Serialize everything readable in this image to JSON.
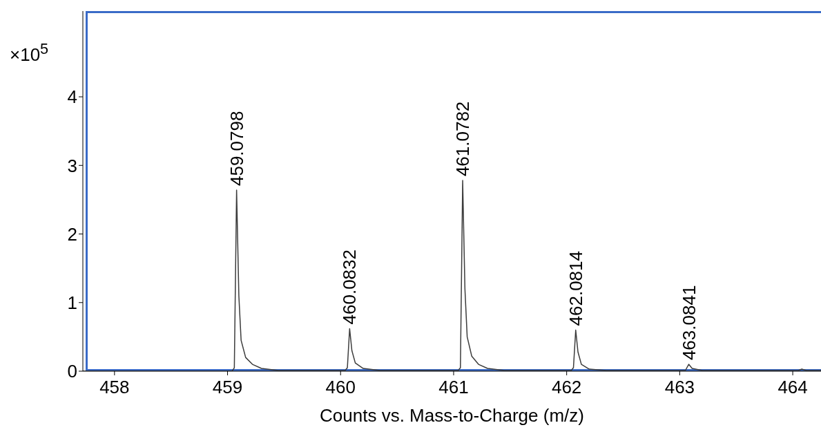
{
  "chart_data": {
    "type": "line",
    "xlabel": "Counts vs. Mass-to-Charge (m/z)",
    "ylabel": "×10$^{5}$",
    "x": [
      457.72,
      459.04,
      459.06,
      459.08,
      459.1,
      459.12,
      459.16,
      459.22,
      459.3,
      459.45,
      460.04,
      460.06,
      460.08,
      460.1,
      460.13,
      460.2,
      460.35,
      461.04,
      461.06,
      461.08,
      461.1,
      461.12,
      461.16,
      461.22,
      461.3,
      461.45,
      462.04,
      462.06,
      462.08,
      462.1,
      462.13,
      462.2,
      462.35,
      463.05,
      463.08,
      463.11,
      463.2,
      464.05,
      464.08,
      464.12,
      464.25
    ],
    "series": [
      {
        "color": "#3c3c3c",
        "values": [
          0,
          0,
          0.05,
          2.64,
          1.1,
          0.45,
          0.2,
          0.1,
          0.04,
          0.01,
          0.01,
          0.05,
          0.62,
          0.3,
          0.12,
          0.04,
          0.01,
          0.01,
          0.05,
          2.78,
          1.2,
          0.5,
          0.22,
          0.1,
          0.04,
          0.01,
          0.01,
          0.05,
          0.6,
          0.28,
          0.1,
          0.03,
          0.01,
          0.01,
          0.1,
          0.04,
          0.01,
          0.01,
          0.03,
          0.01,
          0.01
        ]
      }
    ],
    "xlim": [
      457.72,
      464.25
    ],
    "xticks": [
      458,
      459,
      460,
      461,
      462,
      463,
      464
    ],
    "ylim": [
      0,
      5.25
    ],
    "yticks": [
      0,
      1,
      2,
      3,
      4
    ],
    "grid": false,
    "legend": false,
    "marker": "none",
    "line_style": "solid",
    "annotations": [
      {
        "text": "459.0798",
        "x": 459.08,
        "y": 2.64
      },
      {
        "text": "460.0832",
        "x": 460.08,
        "y": 0.62
      },
      {
        "text": "461.0782",
        "x": 461.08,
        "y": 2.78
      },
      {
        "text": "462.0814",
        "x": 462.08,
        "y": 0.6
      },
      {
        "text": "463.0841",
        "x": 463.08,
        "y": 0.1
      }
    ]
  }
}
